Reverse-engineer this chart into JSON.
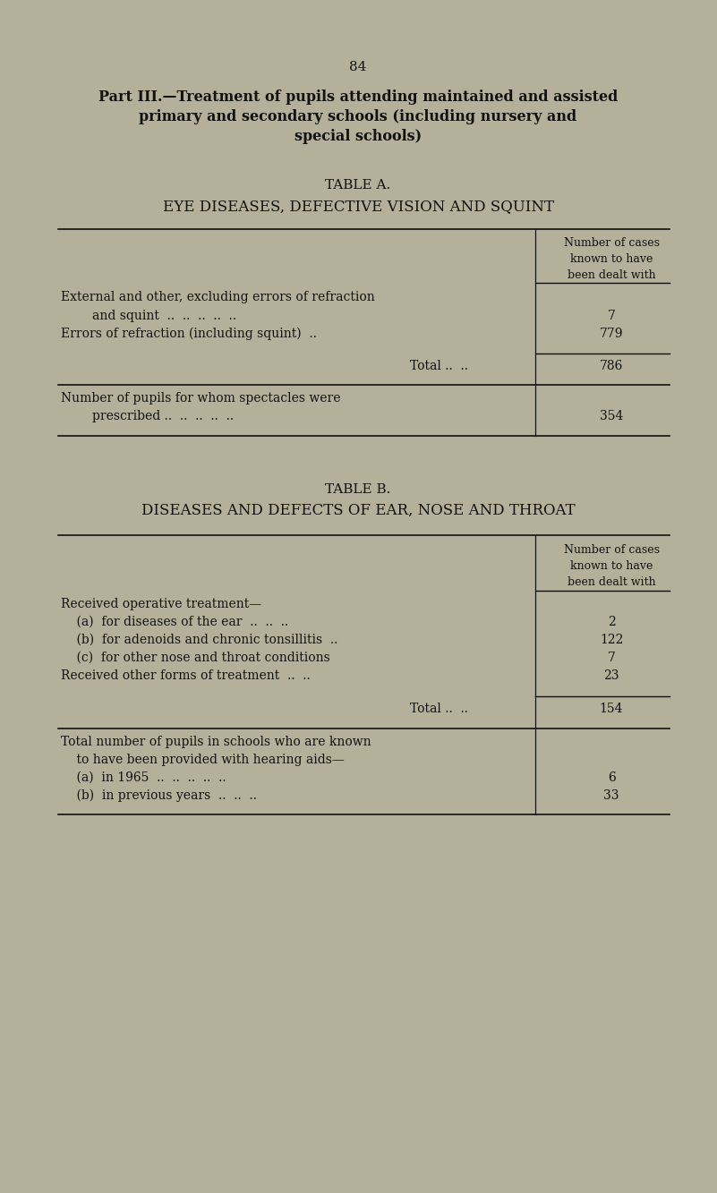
{
  "bg_color": "#b5b09a",
  "text_color": "#111111",
  "page_number": "84",
  "part_title_line1": "Part III.—Treatment of pupils attending maintained and assisted",
  "part_title_line2": "primary and secondary schools (including nursery and",
  "part_title_line3": "special schools)",
  "table_a_title": "TABLE A.",
  "table_a_subtitle": "EYE DISEASES, DEFECTIVE VISION AND SQUINT",
  "col_header": "Number of cases\nknown to have\nbeen dealt with",
  "table_a_total_label": "Total ..  ..",
  "table_a_total_value": "786",
  "table_a_extra_value": "354",
  "table_b_title": "TABLE B.",
  "table_b_subtitle": "DISEASES AND DEFECTS OF EAR, NOSE AND THROAT",
  "col_header_b": "Number of cases\nknown to have\nbeen dealt with",
  "table_b_section1_header": "Received operative treatment—",
  "table_b_total_label": "Total ..  ..",
  "table_b_total_value": "154",
  "fig_width": 8.01,
  "fig_height": 13.33,
  "dpi": 100
}
